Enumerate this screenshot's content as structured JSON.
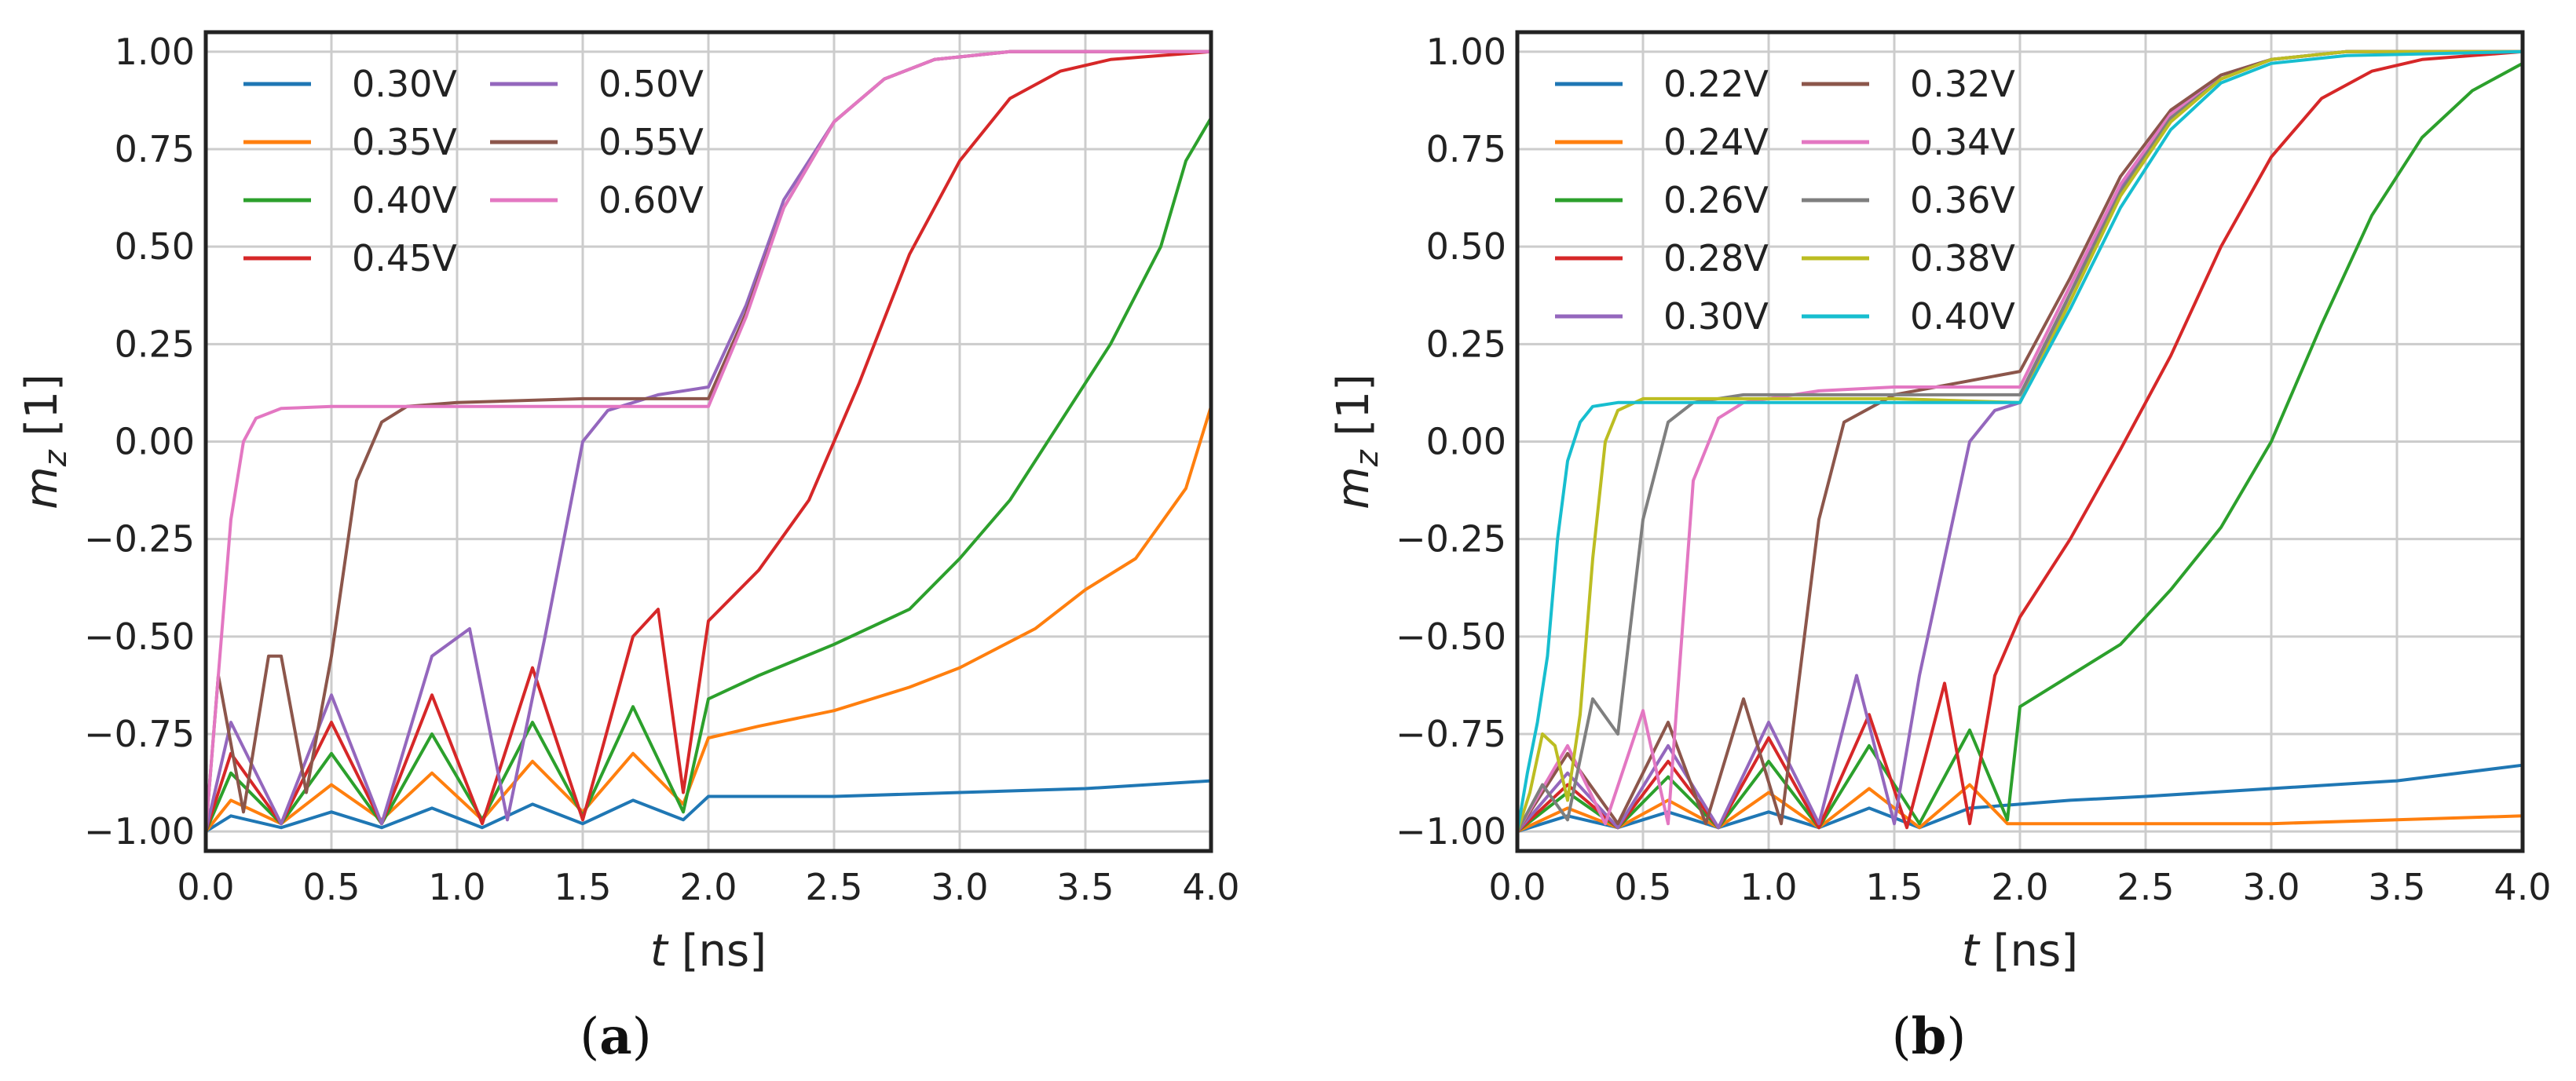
{
  "chart_data": [
    {
      "id": "a",
      "type": "line",
      "caption": "(a)",
      "caption_letter": "a",
      "xlabel_var": "t",
      "xlabel_unit": "[ns]",
      "ylabel_var": "m",
      "ylabel_sub": "z",
      "ylabel_unit": "[1]",
      "xlim": [
        0.0,
        4.0
      ],
      "ylim": [
        -1.05,
        1.05
      ],
      "xticks": [
        "0.0",
        "0.5",
        "1.0",
        "1.5",
        "2.0",
        "2.5",
        "3.0",
        "3.5",
        "4.0"
      ],
      "yticks": [
        "−1.00",
        "−0.75",
        "−0.50",
        "−0.25",
        "0.00",
        "0.25",
        "0.50",
        "0.75",
        "1.00"
      ],
      "xtick_values": [
        0,
        0.5,
        1,
        1.5,
        2,
        2.5,
        3,
        3.5,
        4
      ],
      "ytick_values": [
        -1,
        -0.75,
        -0.5,
        -0.25,
        0,
        0.25,
        0.5,
        0.75,
        1
      ],
      "legend_location": "top-left",
      "legend_columns": 2,
      "series": [
        {
          "name": "0.30V",
          "color": "#1f77b4",
          "x": [
            0,
            0.1,
            0.3,
            0.5,
            0.7,
            0.9,
            1.1,
            1.3,
            1.5,
            1.7,
            1.9,
            2.0,
            2.2,
            2.5,
            3.0,
            3.5,
            4.0
          ],
          "y": [
            -1.0,
            -0.96,
            -0.99,
            -0.95,
            -0.99,
            -0.94,
            -0.99,
            -0.93,
            -0.98,
            -0.92,
            -0.97,
            -0.91,
            -0.91,
            -0.91,
            -0.9,
            -0.89,
            -0.87
          ]
        },
        {
          "name": "0.35V",
          "color": "#ff7f0e",
          "x": [
            0,
            0.1,
            0.3,
            0.5,
            0.7,
            0.9,
            1.1,
            1.3,
            1.5,
            1.7,
            1.9,
            2.0,
            2.2,
            2.5,
            2.8,
            3.0,
            3.3,
            3.5,
            3.7,
            3.9,
            4.0
          ],
          "y": [
            -1.0,
            -0.92,
            -0.98,
            -0.88,
            -0.97,
            -0.85,
            -0.97,
            -0.82,
            -0.95,
            -0.8,
            -0.93,
            -0.76,
            -0.73,
            -0.69,
            -0.63,
            -0.58,
            -0.48,
            -0.38,
            -0.3,
            -0.12,
            0.09
          ]
        },
        {
          "name": "0.40V",
          "color": "#2ca02c",
          "x": [
            0,
            0.1,
            0.3,
            0.5,
            0.7,
            0.9,
            1.1,
            1.3,
            1.5,
            1.7,
            1.9,
            2.0,
            2.2,
            2.5,
            2.8,
            3.0,
            3.2,
            3.4,
            3.6,
            3.8,
            3.9,
            4.0
          ],
          "y": [
            -1.0,
            -0.85,
            -0.98,
            -0.8,
            -0.98,
            -0.75,
            -0.97,
            -0.72,
            -0.96,
            -0.68,
            -0.95,
            -0.66,
            -0.6,
            -0.52,
            -0.43,
            -0.3,
            -0.15,
            0.05,
            0.25,
            0.5,
            0.72,
            0.83
          ]
        },
        {
          "name": "0.45V",
          "color": "#d62728",
          "x": [
            0,
            0.1,
            0.3,
            0.5,
            0.7,
            0.9,
            1.1,
            1.3,
            1.5,
            1.7,
            1.8,
            1.9,
            2.0,
            2.2,
            2.4,
            2.6,
            2.8,
            3.0,
            3.2,
            3.4,
            3.6,
            3.8,
            4.0
          ],
          "y": [
            -1.0,
            -0.8,
            -0.98,
            -0.72,
            -0.98,
            -0.65,
            -0.98,
            -0.58,
            -0.97,
            -0.5,
            -0.43,
            -0.9,
            -0.46,
            -0.33,
            -0.15,
            0.15,
            0.48,
            0.72,
            0.88,
            0.95,
            0.98,
            0.99,
            1.0
          ]
        },
        {
          "name": "0.50V",
          "color": "#9467bd",
          "x": [
            0,
            0.1,
            0.3,
            0.5,
            0.7,
            0.9,
            1.05,
            1.2,
            1.35,
            1.5,
            1.6,
            1.8,
            2.0,
            2.15,
            2.3,
            2.5,
            2.7,
            2.9,
            3.2,
            4.0
          ],
          "y": [
            -1.0,
            -0.72,
            -0.98,
            -0.65,
            -0.98,
            -0.55,
            -0.48,
            -0.97,
            -0.5,
            0.0,
            0.08,
            0.12,
            0.14,
            0.35,
            0.62,
            0.82,
            0.93,
            0.98,
            1.0,
            1.0
          ]
        },
        {
          "name": "0.55V",
          "color": "#8c564b",
          "x": [
            0,
            0.05,
            0.15,
            0.25,
            0.3,
            0.4,
            0.5,
            0.6,
            0.7,
            0.8,
            1.0,
            1.5,
            2.0,
            2.15,
            2.3,
            2.5,
            2.7,
            2.9,
            3.2,
            4.0
          ],
          "y": [
            -1.0,
            -0.6,
            -0.95,
            -0.55,
            -0.55,
            -0.9,
            -0.55,
            -0.1,
            0.05,
            0.09,
            0.1,
            0.11,
            0.11,
            0.33,
            0.6,
            0.82,
            0.93,
            0.98,
            1.0,
            1.0
          ]
        },
        {
          "name": "0.60V",
          "color": "#e377c2",
          "x": [
            0,
            0.05,
            0.1,
            0.15,
            0.2,
            0.3,
            0.5,
            1.0,
            1.5,
            2.0,
            2.15,
            2.3,
            2.5,
            2.7,
            2.9,
            3.2,
            4.0
          ],
          "y": [
            -1.0,
            -0.6,
            -0.2,
            0.0,
            0.06,
            0.085,
            0.09,
            0.09,
            0.09,
            0.09,
            0.32,
            0.6,
            0.82,
            0.93,
            0.98,
            1.0,
            1.0
          ]
        }
      ]
    },
    {
      "id": "b",
      "type": "line",
      "caption": "(b)",
      "caption_letter": "b",
      "xlabel_var": "t",
      "xlabel_unit": "[ns]",
      "ylabel_var": "m",
      "ylabel_sub": "z",
      "ylabel_unit": "[1]",
      "xlim": [
        0.0,
        4.0
      ],
      "ylim": [
        -1.05,
        1.05
      ],
      "xticks": [
        "0.0",
        "0.5",
        "1.0",
        "1.5",
        "2.0",
        "2.5",
        "3.0",
        "3.5",
        "4.0"
      ],
      "yticks": [
        "−1.00",
        "−0.75",
        "−0.50",
        "−0.25",
        "0.00",
        "0.25",
        "0.50",
        "0.75",
        "1.00"
      ],
      "xtick_values": [
        0,
        0.5,
        1,
        1.5,
        2,
        2.5,
        3,
        3.5,
        4
      ],
      "ytick_values": [
        -1,
        -0.75,
        -0.5,
        -0.25,
        0,
        0.25,
        0.5,
        0.75,
        1
      ],
      "legend_location": "top-left",
      "legend_columns": 2,
      "series": [
        {
          "name": "0.22V",
          "color": "#1f77b4",
          "x": [
            0,
            0.2,
            0.4,
            0.6,
            0.8,
            1.0,
            1.2,
            1.4,
            1.6,
            1.8,
            2.0,
            2.2,
            2.5,
            3.0,
            3.5,
            4.0
          ],
          "y": [
            -1.0,
            -0.96,
            -0.99,
            -0.95,
            -0.99,
            -0.95,
            -0.99,
            -0.94,
            -0.99,
            -0.94,
            -0.93,
            -0.92,
            -0.91,
            -0.89,
            -0.87,
            -0.83
          ]
        },
        {
          "name": "0.24V",
          "color": "#ff7f0e",
          "x": [
            0,
            0.2,
            0.4,
            0.6,
            0.8,
            1.0,
            1.2,
            1.4,
            1.6,
            1.8,
            1.95,
            2.0,
            2.5,
            3.0,
            3.5,
            4.0
          ],
          "y": [
            -1.0,
            -0.94,
            -0.99,
            -0.92,
            -0.99,
            -0.9,
            -0.99,
            -0.89,
            -0.99,
            -0.88,
            -0.98,
            -0.98,
            -0.98,
            -0.98,
            -0.97,
            -0.96
          ]
        },
        {
          "name": "0.26V",
          "color": "#2ca02c",
          "x": [
            0,
            0.2,
            0.4,
            0.6,
            0.8,
            1.0,
            1.2,
            1.4,
            1.6,
            1.8,
            1.95,
            2.0,
            2.2,
            2.4,
            2.6,
            2.8,
            3.0,
            3.2,
            3.4,
            3.6,
            3.8,
            4.0
          ],
          "y": [
            -1.0,
            -0.9,
            -0.99,
            -0.86,
            -0.99,
            -0.82,
            -0.99,
            -0.78,
            -0.98,
            -0.74,
            -0.97,
            -0.68,
            -0.6,
            -0.52,
            -0.38,
            -0.22,
            0.0,
            0.3,
            0.58,
            0.78,
            0.9,
            0.97
          ]
        },
        {
          "name": "0.28V",
          "color": "#d62728",
          "x": [
            0,
            0.2,
            0.4,
            0.6,
            0.8,
            1.0,
            1.2,
            1.4,
            1.55,
            1.7,
            1.8,
            1.9,
            2.0,
            2.2,
            2.4,
            2.6,
            2.8,
            3.0,
            3.2,
            3.4,
            3.6,
            3.8,
            4.0
          ],
          "y": [
            -1.0,
            -0.88,
            -0.99,
            -0.82,
            -0.99,
            -0.76,
            -0.99,
            -0.7,
            -0.99,
            -0.62,
            -0.98,
            -0.6,
            -0.45,
            -0.25,
            -0.02,
            0.22,
            0.5,
            0.73,
            0.88,
            0.95,
            0.98,
            0.99,
            1.0
          ]
        },
        {
          "name": "0.30V",
          "color": "#9467bd",
          "x": [
            0,
            0.2,
            0.4,
            0.6,
            0.8,
            1.0,
            1.2,
            1.35,
            1.5,
            1.6,
            1.7,
            1.8,
            1.9,
            2.0,
            2.2,
            2.4,
            2.6,
            2.8,
            3.0,
            3.3,
            4.0
          ],
          "y": [
            -1.0,
            -0.85,
            -0.99,
            -0.78,
            -0.99,
            -0.72,
            -0.98,
            -0.6,
            -0.98,
            -0.6,
            -0.3,
            0.0,
            0.08,
            0.1,
            0.38,
            0.65,
            0.84,
            0.94,
            0.98,
            1.0,
            1.0
          ]
        },
        {
          "name": "0.32V",
          "color": "#8c564b",
          "x": [
            0,
            0.2,
            0.4,
            0.6,
            0.75,
            0.9,
            1.05,
            1.2,
            1.3,
            1.5,
            2.0,
            2.2,
            2.4,
            2.6,
            2.8,
            3.0,
            3.3,
            4.0
          ],
          "y": [
            -1.0,
            -0.8,
            -0.98,
            -0.72,
            -0.98,
            -0.66,
            -0.98,
            -0.2,
            0.05,
            0.12,
            0.18,
            0.42,
            0.68,
            0.85,
            0.94,
            0.98,
            1.0,
            1.0
          ]
        },
        {
          "name": "0.34V",
          "color": "#e377c2",
          "x": [
            0,
            0.2,
            0.35,
            0.5,
            0.6,
            0.7,
            0.8,
            0.9,
            1.2,
            1.5,
            2.0,
            2.2,
            2.4,
            2.6,
            2.8,
            3.0,
            3.3,
            4.0
          ],
          "y": [
            -1.0,
            -0.78,
            -0.98,
            -0.69,
            -0.98,
            -0.1,
            0.06,
            0.1,
            0.13,
            0.14,
            0.14,
            0.4,
            0.66,
            0.84,
            0.93,
            0.98,
            1.0,
            1.0
          ]
        },
        {
          "name": "0.36V",
          "color": "#7f7f7f",
          "x": [
            0,
            0.1,
            0.2,
            0.3,
            0.4,
            0.5,
            0.6,
            0.7,
            0.9,
            1.2,
            1.5,
            2.0,
            2.2,
            2.4,
            2.6,
            2.8,
            3.0,
            3.3,
            4.0
          ],
          "y": [
            -1.0,
            -0.88,
            -0.97,
            -0.66,
            -0.75,
            -0.2,
            0.05,
            0.1,
            0.12,
            0.12,
            0.12,
            0.12,
            0.38,
            0.64,
            0.83,
            0.93,
            0.98,
            1.0,
            1.0
          ]
        },
        {
          "name": "0.38V",
          "color": "#bcbd22",
          "x": [
            0,
            0.05,
            0.1,
            0.15,
            0.2,
            0.25,
            0.3,
            0.35,
            0.4,
            0.5,
            1.0,
            1.5,
            2.0,
            2.2,
            2.4,
            2.6,
            2.8,
            3.0,
            3.3,
            4.0
          ],
          "y": [
            -1.0,
            -0.9,
            -0.75,
            -0.78,
            -0.92,
            -0.7,
            -0.3,
            0.0,
            0.08,
            0.11,
            0.11,
            0.11,
            0.1,
            0.36,
            0.63,
            0.82,
            0.93,
            0.98,
            1.0,
            1.0
          ]
        },
        {
          "name": "0.40V",
          "color": "#17becf",
          "x": [
            0,
            0.04,
            0.08,
            0.12,
            0.16,
            0.2,
            0.25,
            0.3,
            0.4,
            0.6,
            1.0,
            1.5,
            2.0,
            2.2,
            2.4,
            2.6,
            2.8,
            3.0,
            3.3,
            4.0
          ],
          "y": [
            -1.0,
            -0.85,
            -0.72,
            -0.55,
            -0.25,
            -0.05,
            0.05,
            0.09,
            0.1,
            0.1,
            0.1,
            0.1,
            0.1,
            0.34,
            0.6,
            0.8,
            0.92,
            0.97,
            0.99,
            1.0
          ]
        }
      ]
    }
  ]
}
